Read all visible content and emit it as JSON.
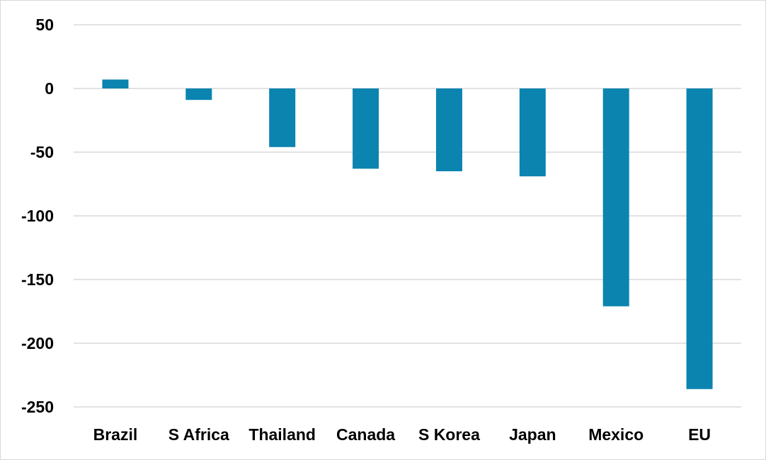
{
  "chart_data": {
    "type": "bar",
    "title": "",
    "xlabel": "",
    "ylabel": "",
    "categories": [
      "Brazil",
      "S Africa",
      "Thailand",
      "Canada",
      "S Korea",
      "Japan",
      "Mexico",
      "EU"
    ],
    "values": [
      7,
      -9,
      -46,
      -63,
      -65,
      -69,
      -171,
      -236
    ],
    "ylim": [
      -250,
      50
    ],
    "yticks": [
      50,
      0,
      -50,
      -100,
      -150,
      -200,
      -250
    ],
    "grid": true,
    "legend": "none",
    "bar_color": "#0b84b0"
  }
}
